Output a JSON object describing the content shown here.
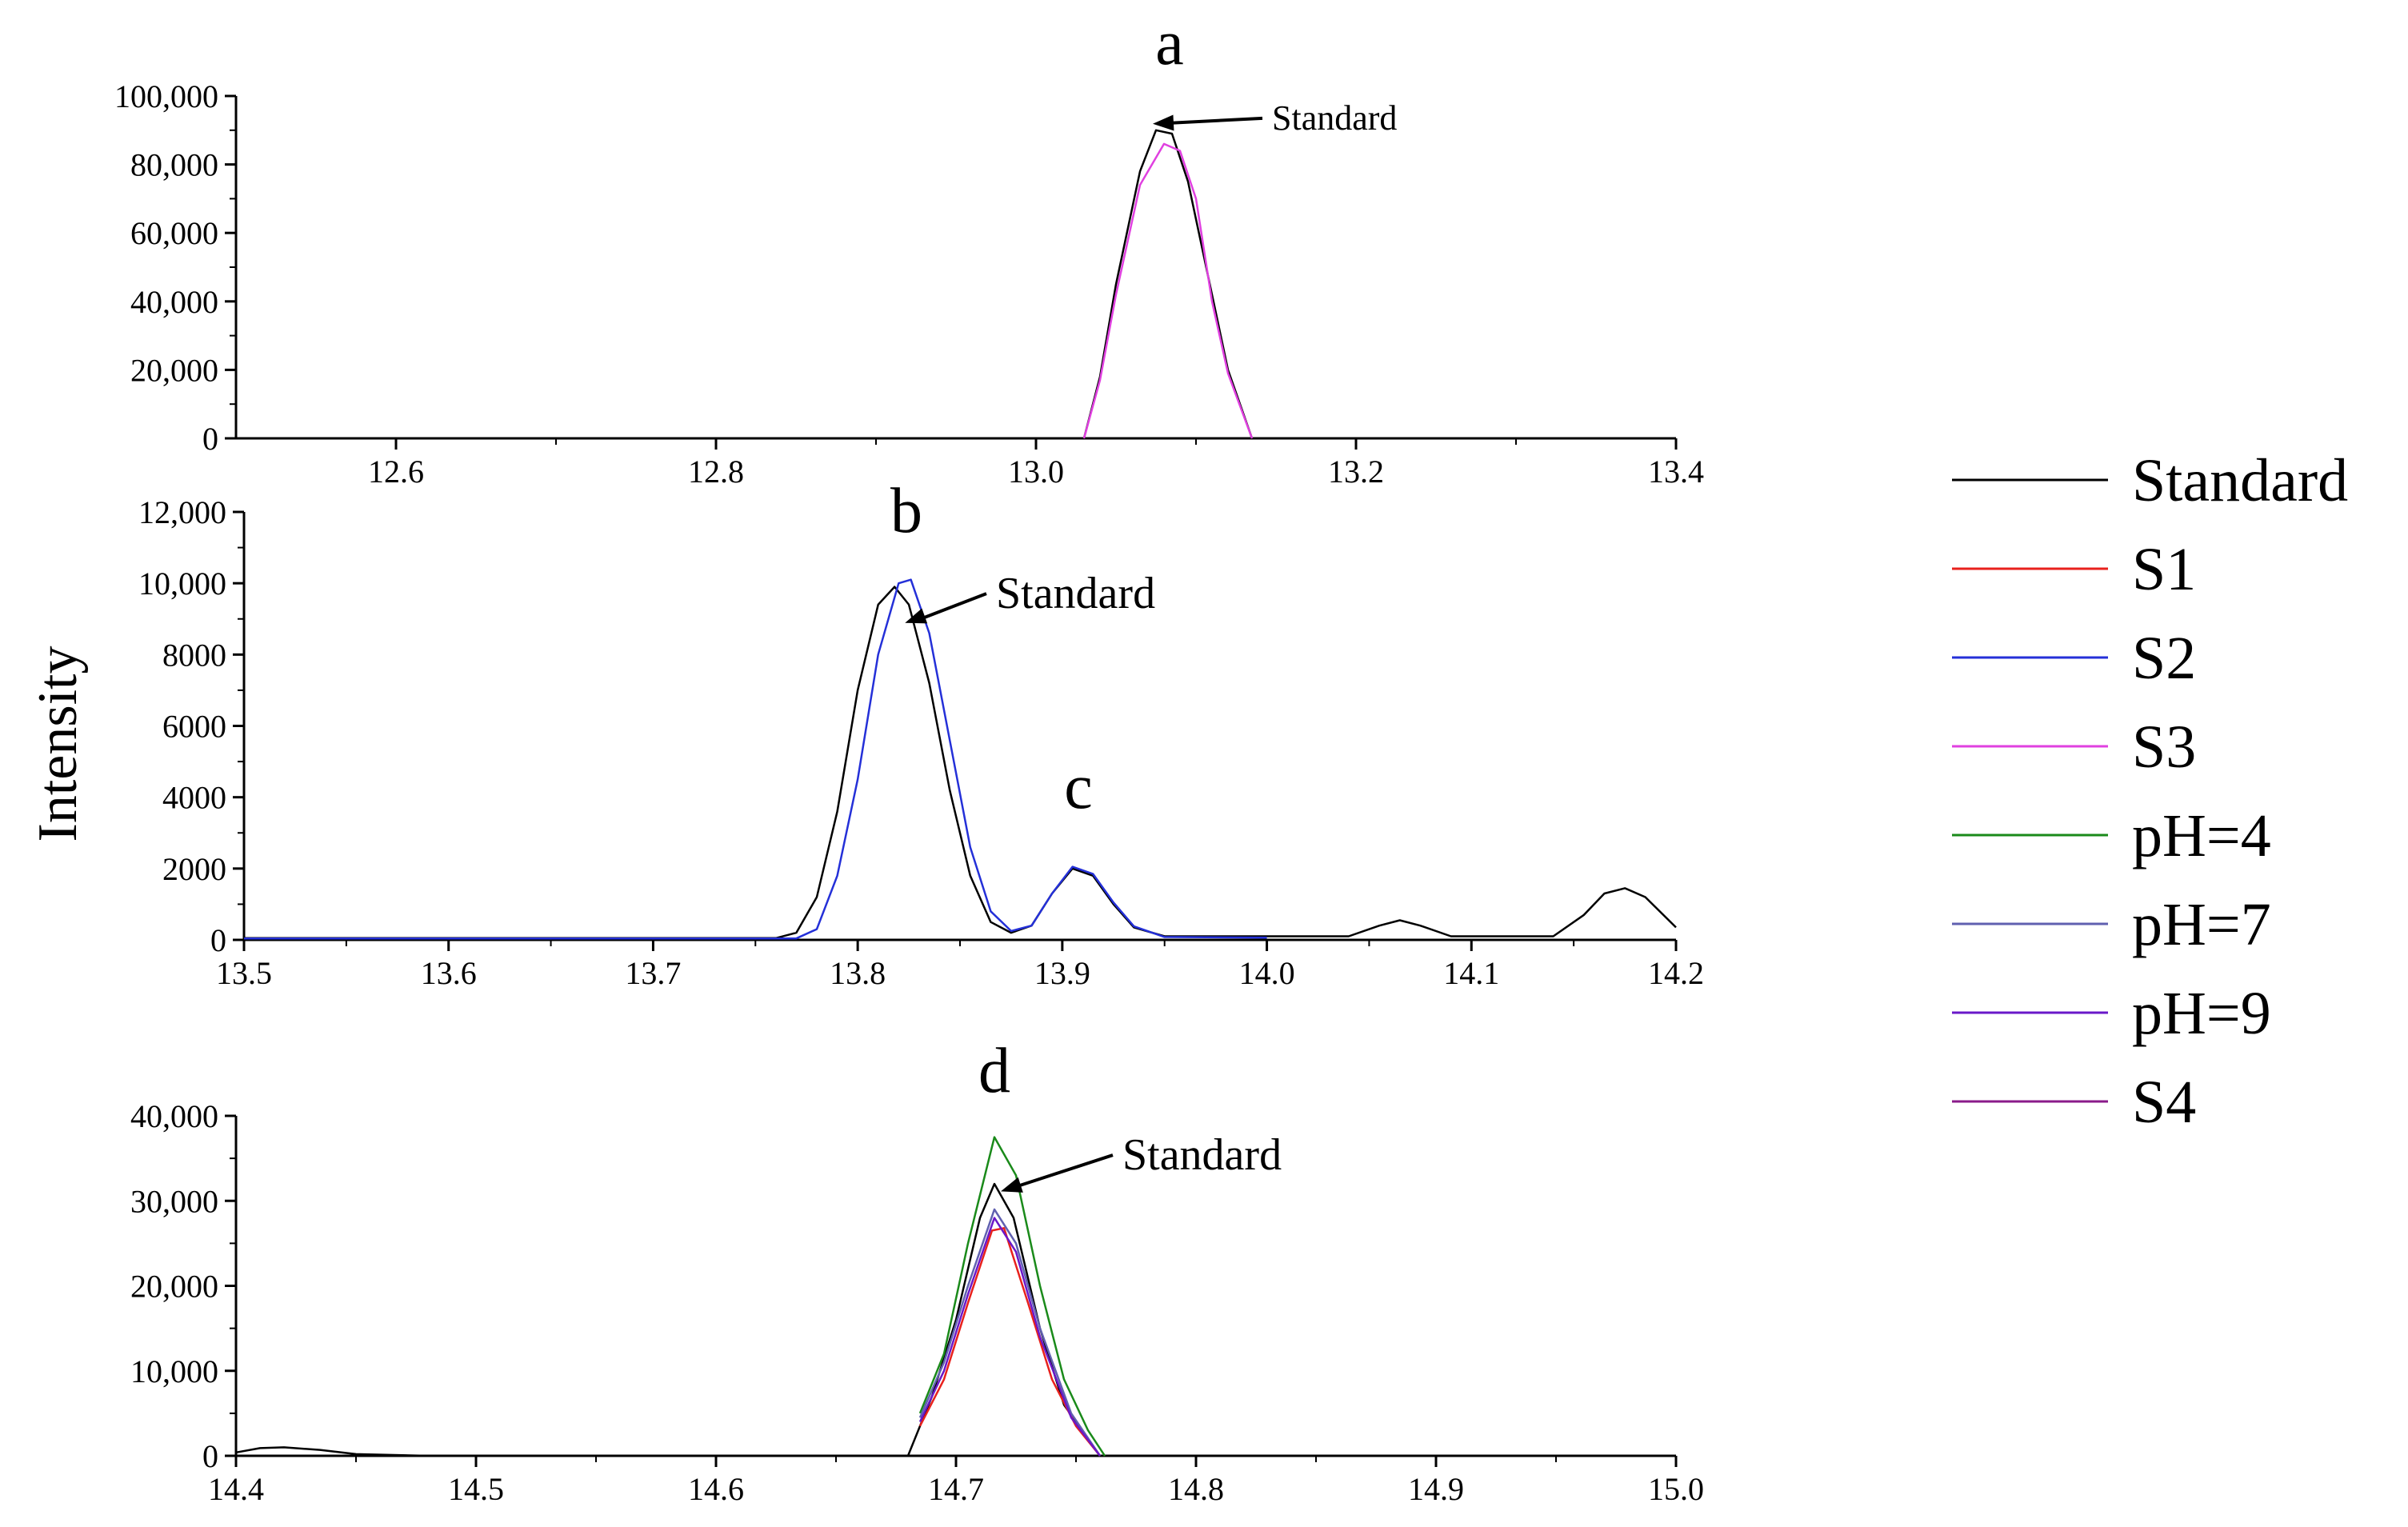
{
  "figure": {
    "ylabel": "Intensity"
  },
  "legend": [
    {
      "name": "Standard",
      "color": "#000000"
    },
    {
      "name": "S1",
      "color": "#e8211d"
    },
    {
      "name": "S2",
      "color": "#2430d8"
    },
    {
      "name": "S3",
      "color": "#e040e0"
    },
    {
      "name": "pH=4",
      "color": "#1a8a1a"
    },
    {
      "name": "pH=7",
      "color": "#6060b0"
    },
    {
      "name": "pH=9",
      "color": "#6a18c8"
    },
    {
      "name": "S4",
      "color": "#8a1a8a"
    }
  ],
  "chart_data": [
    {
      "type": "line",
      "panel": "a",
      "title": "a",
      "xlim": [
        12.5,
        13.4
      ],
      "ylim": [
        0,
        100000
      ],
      "x_ticks": [
        "12.6",
        "12.8",
        "13.0",
        "13.2",
        "13.4"
      ],
      "x_tick_values": [
        12.6,
        12.8,
        13.0,
        13.2,
        13.4
      ],
      "y_ticks": [
        "0",
        "20,000",
        "40,000",
        "60,000",
        "80,000",
        "100,000"
      ],
      "y_tick_values": [
        0,
        20000,
        40000,
        60000,
        80000,
        100000
      ],
      "annotation": {
        "text": "Standard",
        "x": 13.08,
        "y": 90000
      },
      "series": [
        {
          "name": "Standard",
          "color": "#000000",
          "points": [
            [
              13.03,
              0
            ],
            [
              13.04,
              18000
            ],
            [
              13.05,
              45000
            ],
            [
              13.065,
              78000
            ],
            [
              13.075,
              90000
            ],
            [
              13.085,
              89000
            ],
            [
              13.095,
              75000
            ],
            [
              13.11,
              42000
            ],
            [
              13.12,
              20000
            ],
            [
              13.135,
              0
            ]
          ]
        },
        {
          "name": "S3",
          "color": "#e040e0",
          "points": [
            [
              13.03,
              0
            ],
            [
              13.04,
              17000
            ],
            [
              13.05,
              42000
            ],
            [
              13.065,
              74000
            ],
            [
              13.08,
              86000
            ],
            [
              13.09,
              84000
            ],
            [
              13.1,
              70000
            ],
            [
              13.11,
              40000
            ],
            [
              13.12,
              19000
            ],
            [
              13.135,
              0
            ]
          ]
        }
      ]
    },
    {
      "type": "line",
      "panel": "b",
      "title": "b",
      "peak_label": "c",
      "xlim": [
        13.5,
        14.2
      ],
      "ylim": [
        0,
        12000
      ],
      "x_ticks": [
        "13.5",
        "13.6",
        "13.7",
        "13.8",
        "13.9",
        "14.0",
        "14.1",
        "14.2"
      ],
      "x_tick_values": [
        13.5,
        13.6,
        13.7,
        13.8,
        13.9,
        14.0,
        14.1,
        14.2
      ],
      "y_ticks": [
        "0",
        "2000",
        "4000",
        "6000",
        "8000",
        "10,000",
        "12,000"
      ],
      "y_tick_values": [
        0,
        2000,
        4000,
        6000,
        8000,
        10000,
        12000
      ],
      "annotation": {
        "text": "Standard",
        "x": 13.82,
        "y": 9000
      },
      "series": [
        {
          "name": "Standard",
          "color": "#000000",
          "points": [
            [
              13.5,
              50
            ],
            [
              13.76,
              50
            ],
            [
              13.77,
              200
            ],
            [
              13.78,
              1200
            ],
            [
              13.79,
              3600
            ],
            [
              13.8,
              7000
            ],
            [
              13.81,
              9400
            ],
            [
              13.818,
              9900
            ],
            [
              13.825,
              9400
            ],
            [
              13.835,
              7200
            ],
            [
              13.845,
              4200
            ],
            [
              13.855,
              1800
            ],
            [
              13.865,
              500
            ],
            [
              13.875,
              200
            ],
            [
              13.885,
              400
            ],
            [
              13.895,
              1300
            ],
            [
              13.905,
              2000
            ],
            [
              13.915,
              1800
            ],
            [
              13.925,
              1000
            ],
            [
              13.935,
              350
            ],
            [
              13.95,
              100
            ],
            [
              14.04,
              100
            ],
            [
              14.055,
              400
            ],
            [
              14.065,
              550
            ],
            [
              14.075,
              400
            ],
            [
              14.09,
              100
            ],
            [
              14.14,
              100
            ],
            [
              14.155,
              700
            ],
            [
              14.165,
              1300
            ],
            [
              14.175,
              1450
            ],
            [
              14.185,
              1200
            ],
            [
              14.2,
              350
            ]
          ]
        },
        {
          "name": "S2",
          "color": "#2430d8",
          "points": [
            [
              13.5,
              40
            ],
            [
              13.77,
              40
            ],
            [
              13.78,
              300
            ],
            [
              13.79,
              1800
            ],
            [
              13.8,
              4500
            ],
            [
              13.81,
              8000
            ],
            [
              13.82,
              10000
            ],
            [
              13.826,
              10100
            ],
            [
              13.835,
              8600
            ],
            [
              13.845,
              5600
            ],
            [
              13.855,
              2600
            ],
            [
              13.865,
              800
            ],
            [
              13.875,
              250
            ],
            [
              13.885,
              400
            ],
            [
              13.895,
              1300
            ],
            [
              13.905,
              2050
            ],
            [
              13.915,
              1850
            ],
            [
              13.925,
              1050
            ],
            [
              13.935,
              380
            ],
            [
              13.95,
              80
            ],
            [
              14.0,
              60
            ]
          ]
        }
      ]
    },
    {
      "type": "line",
      "panel": "d",
      "title": "d",
      "xlim": [
        14.4,
        15.0
      ],
      "ylim": [
        0,
        40000
      ],
      "x_ticks": [
        "14.4",
        "14.5",
        "14.6",
        "14.7",
        "14.8",
        "14.9",
        "15.0"
      ],
      "x_tick_values": [
        14.4,
        14.5,
        14.6,
        14.7,
        14.8,
        14.9,
        15.0
      ],
      "y_ticks": [
        "0",
        "10,000",
        "20,000",
        "30,000",
        "40,000"
      ],
      "y_tick_values": [
        0,
        10000,
        20000,
        30000,
        40000
      ],
      "annotation": {
        "text": "Standard",
        "x": 14.716,
        "y": 31500
      },
      "series": [
        {
          "name": "Standard",
          "color": "#000000",
          "points": [
            [
              14.4,
              400
            ],
            [
              14.41,
              900
            ],
            [
              14.42,
              1000
            ],
            [
              14.435,
              700
            ],
            [
              14.45,
              200
            ],
            [
              14.48,
              0
            ],
            [
              14.68,
              0
            ],
            [
              14.69,
              7000
            ],
            [
              14.7,
              16000
            ],
            [
              14.71,
              28000
            ],
            [
              14.716,
              32000
            ],
            [
              14.724,
              28000
            ],
            [
              14.735,
              15000
            ],
            [
              14.745,
              6000
            ],
            [
              14.76,
              0
            ],
            [
              14.8,
              0
            ]
          ]
        },
        {
          "name": "S1",
          "color": "#e8211d",
          "points": [
            [
              14.685,
              3500
            ],
            [
              14.695,
              9000
            ],
            [
              14.705,
              18000
            ],
            [
              14.715,
              26500
            ],
            [
              14.72,
              26800
            ],
            [
              14.73,
              18000
            ],
            [
              14.74,
              9000
            ],
            [
              14.75,
              3500
            ],
            [
              14.76,
              0
            ]
          ]
        },
        {
          "name": "pH=4",
          "color": "#1a8a1a",
          "points": [
            [
              14.685,
              5000
            ],
            [
              14.695,
              12000
            ],
            [
              14.705,
              25000
            ],
            [
              14.716,
              37500
            ],
            [
              14.725,
              33000
            ],
            [
              14.735,
              20000
            ],
            [
              14.745,
              9000
            ],
            [
              14.755,
              3000
            ],
            [
              14.762,
              0
            ]
          ]
        },
        {
          "name": "pH=7",
          "color": "#6060b0",
          "points": [
            [
              14.685,
              4500
            ],
            [
              14.695,
              11000
            ],
            [
              14.705,
              20000
            ],
            [
              14.716,
              29000
            ],
            [
              14.725,
              25000
            ],
            [
              14.735,
              15000
            ],
            [
              14.748,
              5000
            ],
            [
              14.76,
              0
            ]
          ]
        },
        {
          "name": "pH=9",
          "color": "#6a18c8",
          "points": [
            [
              14.685,
              4000
            ],
            [
              14.695,
              10000
            ],
            [
              14.705,
              19000
            ],
            [
              14.716,
              28000
            ],
            [
              14.725,
              24000
            ],
            [
              14.735,
              14000
            ],
            [
              14.748,
              4500
            ],
            [
              14.76,
              0
            ]
          ]
        }
      ]
    }
  ]
}
